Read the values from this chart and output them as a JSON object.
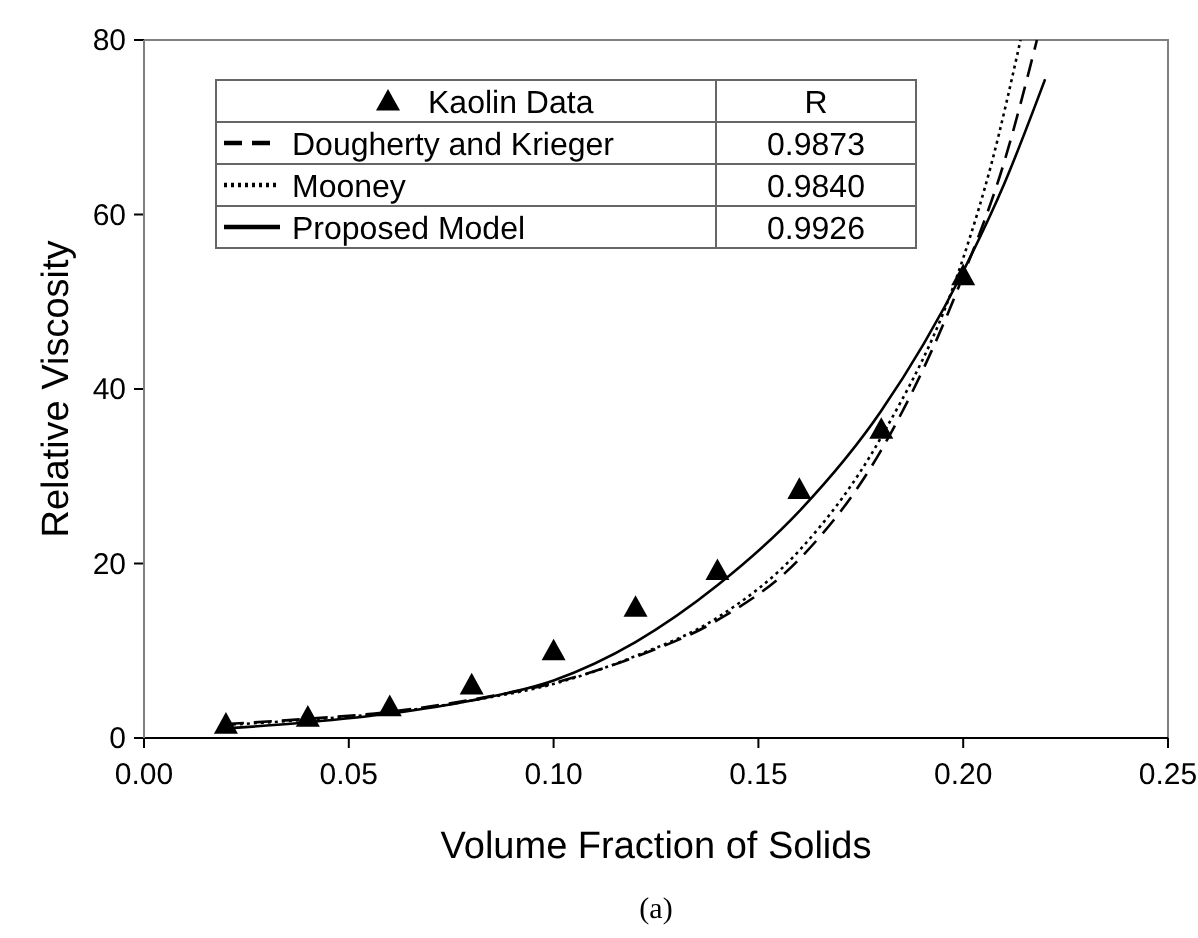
{
  "chart_data": {
    "type": "line",
    "xlabel": "Volume Fraction of Solids",
    "ylabel": "Relative Viscosity",
    "xlim": [
      0,
      0.25
    ],
    "ylim": [
      0,
      80
    ],
    "xticks": [
      {
        "value": 0,
        "label": "0.00"
      },
      {
        "value": 0.05,
        "label": "0.05"
      },
      {
        "value": 0.1,
        "label": "0.10"
      },
      {
        "value": 0.15,
        "label": "0.15"
      },
      {
        "value": 0.2,
        "label": "0.20"
      },
      {
        "value": 0.25,
        "label": "0.25"
      }
    ],
    "yticks": [
      0,
      20,
      40,
      60,
      80
    ],
    "grid": false,
    "legend": "top left",
    "legend_title": "R",
    "series": [
      {
        "name": "Kaolin Data",
        "type": "scatter",
        "marker": "triangle",
        "color": "#000000",
        "x": [
          0.02,
          0.04,
          0.06,
          0.08,
          0.1,
          0.12,
          0.14,
          0.16,
          0.18,
          0.2
        ],
        "values": [
          1.6,
          2.4,
          3.6,
          6.1,
          10,
          15,
          19.2,
          28.5,
          35.4,
          53
        ]
      },
      {
        "name": "Dougherty and Krieger",
        "type": "line",
        "line_style": "dashed",
        "color": "#000000",
        "x": [
          0.02,
          0.04,
          0.06,
          0.08,
          0.1,
          0.12,
          0.14,
          0.16,
          0.18,
          0.2,
          0.21,
          0.218
        ],
        "values": [
          1.6,
          2.2,
          3,
          4.4,
          6.3,
          9.3,
          13.5,
          20.5,
          33,
          53,
          66,
          80
        ]
      },
      {
        "name": "Mooney",
        "type": "line",
        "line_style": "dotted",
        "color": "#000000",
        "x": [
          0.02,
          0.04,
          0.06,
          0.08,
          0.1,
          0.12,
          0.14,
          0.16,
          0.18,
          0.2,
          0.207,
          0.214
        ],
        "values": [
          1.5,
          2.1,
          2.9,
          4.3,
          6.2,
          9.4,
          13.8,
          21.5,
          34.5,
          55,
          66,
          80
        ]
      },
      {
        "name": "Proposed Model",
        "type": "line",
        "line_style": "solid",
        "color": "#000000",
        "x": [
          0.02,
          0.04,
          0.06,
          0.08,
          0.1,
          0.12,
          0.14,
          0.16,
          0.18,
          0.2,
          0.21,
          0.22
        ],
        "values": [
          1.1,
          1.8,
          2.8,
          4.3,
          6.6,
          11,
          17.5,
          26,
          37.5,
          53.5,
          63.5,
          75.5
        ]
      }
    ],
    "annotations": [
      "0.9873",
      "0.9840",
      "0.9926",
      "(a)"
    ]
  }
}
